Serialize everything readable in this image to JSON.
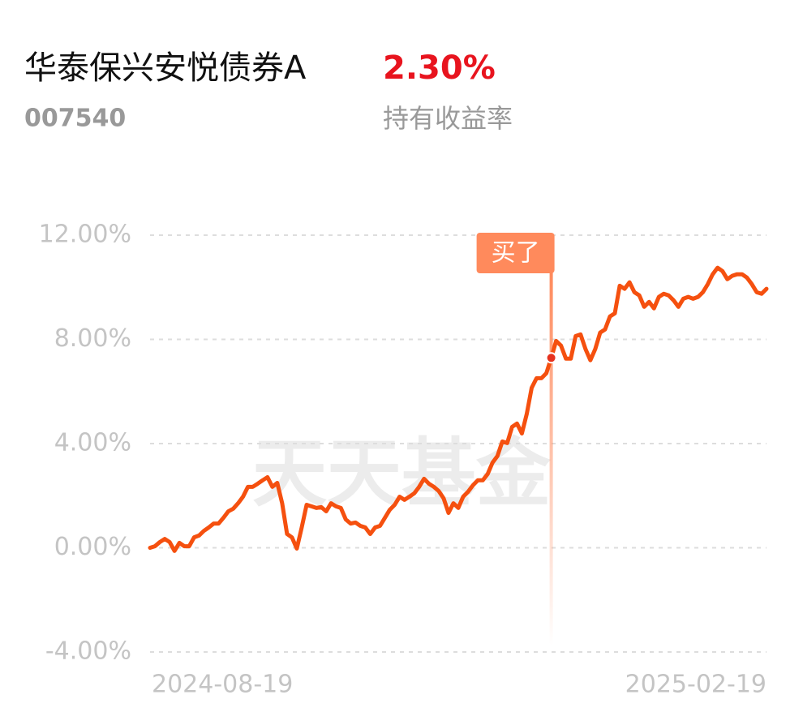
{
  "header": {
    "name": "华泰保兴安悦债券A",
    "return": "2.30%",
    "code": "007540",
    "return_label": "持有收益率"
  },
  "chart_data": {
    "type": "line",
    "watermark": "天天基金",
    "color": "#f5500f",
    "categories": [
      "2024-08-19",
      null,
      null,
      null,
      null,
      null,
      null,
      null,
      null,
      null,
      null,
      null,
      null,
      null,
      null,
      null,
      null,
      null,
      null,
      null,
      null,
      null,
      null,
      null,
      null,
      null,
      null,
      null,
      null,
      null,
      null,
      null,
      null,
      null,
      null,
      null,
      null,
      null,
      null,
      null,
      null,
      null,
      null,
      null,
      null,
      null,
      null,
      null,
      null,
      null,
      null,
      null,
      null,
      null,
      null,
      null,
      null,
      null,
      null,
      null,
      null,
      null,
      null,
      null,
      null,
      null,
      null,
      null,
      null,
      null,
      null,
      null,
      null,
      null,
      null,
      null,
      null,
      null,
      null,
      null,
      null,
      null,
      null,
      null,
      null,
      null,
      null,
      null,
      null,
      null,
      null,
      null,
      null,
      null,
      null,
      null,
      null,
      null,
      null,
      null,
      null,
      null,
      null,
      null,
      null,
      null,
      null,
      null,
      null,
      null,
      null,
      null,
      null,
      null,
      null,
      null,
      null,
      null,
      null,
      null,
      null,
      null,
      null,
      null,
      null,
      null,
      "2025-02-19"
    ],
    "values": [
      0,
      0.06,
      0.22,
      0.34,
      0.22,
      -0.12,
      0.19,
      0.06,
      0.06,
      0.4,
      0.47,
      0.65,
      0.78,
      0.93,
      0.93,
      1.15,
      1.4,
      1.5,
      1.71,
      1.96,
      2.34,
      2.34,
      2.46,
      2.59,
      2.71,
      2.34,
      2.49,
      1.71,
      0.53,
      0.4,
      -0.03,
      0.78,
      1.65,
      1.59,
      1.53,
      1.56,
      1.4,
      1.71,
      1.59,
      1.53,
      1.09,
      0.93,
      0.97,
      0.84,
      0.78,
      0.53,
      0.78,
      0.84,
      1.15,
      1.46,
      1.65,
      1.96,
      1.84,
      1.96,
      2.09,
      2.34,
      2.65,
      2.46,
      2.34,
      2.18,
      1.9,
      1.34,
      1.71,
      1.53,
      1.96,
      2.15,
      2.4,
      2.59,
      2.59,
      2.83,
      3.27,
      3.52,
      4.08,
      4.02,
      4.64,
      4.77,
      4.39,
      5.14,
      6.14,
      6.51,
      6.51,
      6.7,
      7.29,
      7.94,
      7.76,
      7.26,
      7.26,
      8.13,
      8.19,
      7.63,
      7.2,
      7.63,
      8.26,
      8.38,
      8.88,
      9.0,
      10.06,
      9.94,
      10.19,
      9.81,
      9.69,
      9.25,
      9.44,
      9.19,
      9.63,
      9.75,
      9.69,
      9.5,
      9.25,
      9.56,
      9.63,
      9.56,
      9.63,
      9.81,
      10.12,
      10.5,
      10.75,
      10.62,
      10.31,
      10.44,
      10.5,
      10.5,
      10.37,
      10.12,
      9.81,
      9.75,
      9.94
    ],
    "ylim": [
      -4,
      12
    ],
    "yticks": [
      {
        "value": -4,
        "label": "-4.00%"
      },
      {
        "value": 0,
        "label": "0.00%"
      },
      {
        "value": 4,
        "label": "4.00%"
      },
      {
        "value": 8,
        "label": "8.00%"
      },
      {
        "value": 12,
        "label": "12.00%"
      }
    ],
    "grid": true,
    "annotations": [
      {
        "text": "买了",
        "index": 82
      }
    ]
  }
}
